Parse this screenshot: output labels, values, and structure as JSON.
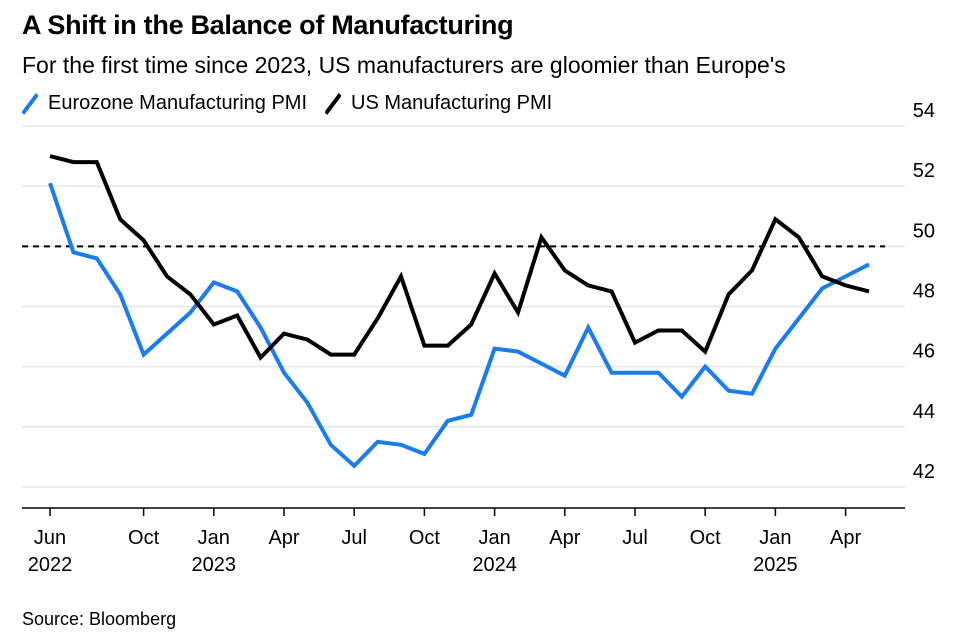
{
  "title": "A Shift in the Balance of Manufacturing",
  "subtitle": "For the first time since 2023, US manufacturers are gloomier than Europe's",
  "source": "Source: Bloomberg",
  "colors": {
    "eurozone": "#1a7cf0",
    "us": "#000000",
    "grid": "#e6e6e6",
    "reference": "#000000"
  },
  "chart_data": {
    "type": "line",
    "title": "A Shift in the Balance of Manufacturing",
    "subtitle": "For the first time since 2023, US manufacturers are gloomier than Europe's",
    "xlabel": "",
    "ylabel": "",
    "x": [
      "2022-06",
      "2022-07",
      "2022-08",
      "2022-09",
      "2022-10",
      "2022-11",
      "2022-12",
      "2023-01",
      "2023-02",
      "2023-03",
      "2023-04",
      "2023-05",
      "2023-06",
      "2023-07",
      "2023-08",
      "2023-09",
      "2023-10",
      "2023-11",
      "2023-12",
      "2024-01",
      "2024-02",
      "2024-03",
      "2024-04",
      "2024-05",
      "2024-06",
      "2024-07",
      "2024-08",
      "2024-09",
      "2024-10",
      "2024-11",
      "2024-12",
      "2025-01",
      "2025-02",
      "2025-03",
      "2025-04",
      "2025-05"
    ],
    "series": [
      {
        "name": "Eurozone Manufacturing PMI",
        "color": "#1a7cf0",
        "values": [
          52.1,
          49.8,
          49.6,
          48.4,
          46.4,
          47.1,
          47.8,
          48.8,
          48.5,
          47.3,
          45.8,
          44.8,
          43.4,
          42.7,
          43.5,
          43.4,
          43.1,
          44.2,
          44.4,
          46.6,
          46.5,
          46.1,
          45.7,
          47.3,
          45.8,
          45.8,
          45.8,
          45.0,
          46.0,
          45.2,
          45.1,
          46.6,
          47.6,
          48.6,
          49.0,
          49.4
        ],
        "data_end_index": 35
      },
      {
        "name": "US Manufacturing PMI",
        "color": "#000000",
        "values": [
          53.0,
          52.8,
          52.8,
          50.9,
          50.2,
          49.0,
          48.4,
          47.4,
          47.7,
          46.3,
          47.1,
          46.9,
          46.4,
          46.4,
          47.6,
          49.0,
          46.7,
          46.7,
          47.4,
          49.1,
          47.8,
          50.3,
          49.2,
          48.7,
          48.5,
          46.8,
          47.2,
          47.2,
          46.5,
          48.4,
          49.2,
          50.9,
          50.3,
          49.0,
          48.7,
          48.5
        ],
        "data_end_index": 35
      }
    ],
    "reference_line": 50,
    "ylim": [
      41.3,
      54.2
    ],
    "yticks": [
      42,
      44,
      46,
      48,
      50,
      52,
      54
    ],
    "xticks": [
      {
        "x": "2022-06",
        "label": "Jun",
        "year": "2022"
      },
      {
        "x": "2022-10",
        "label": "Oct",
        "year": ""
      },
      {
        "x": "2023-01",
        "label": "Jan",
        "year": "2023"
      },
      {
        "x": "2023-04",
        "label": "Apr",
        "year": ""
      },
      {
        "x": "2023-07",
        "label": "Jul",
        "year": ""
      },
      {
        "x": "2023-10",
        "label": "Oct",
        "year": ""
      },
      {
        "x": "2024-01",
        "label": "Jan",
        "year": "2024"
      },
      {
        "x": "2024-04",
        "label": "Apr",
        "year": ""
      },
      {
        "x": "2024-07",
        "label": "Jul",
        "year": ""
      },
      {
        "x": "2024-10",
        "label": "Oct",
        "year": ""
      },
      {
        "x": "2025-01",
        "label": "Jan",
        "year": "2025"
      },
      {
        "x": "2025-04",
        "label": "Apr",
        "year": ""
      }
    ],
    "grid": true,
    "legend": "top-left",
    "y_axis_side": "right"
  }
}
